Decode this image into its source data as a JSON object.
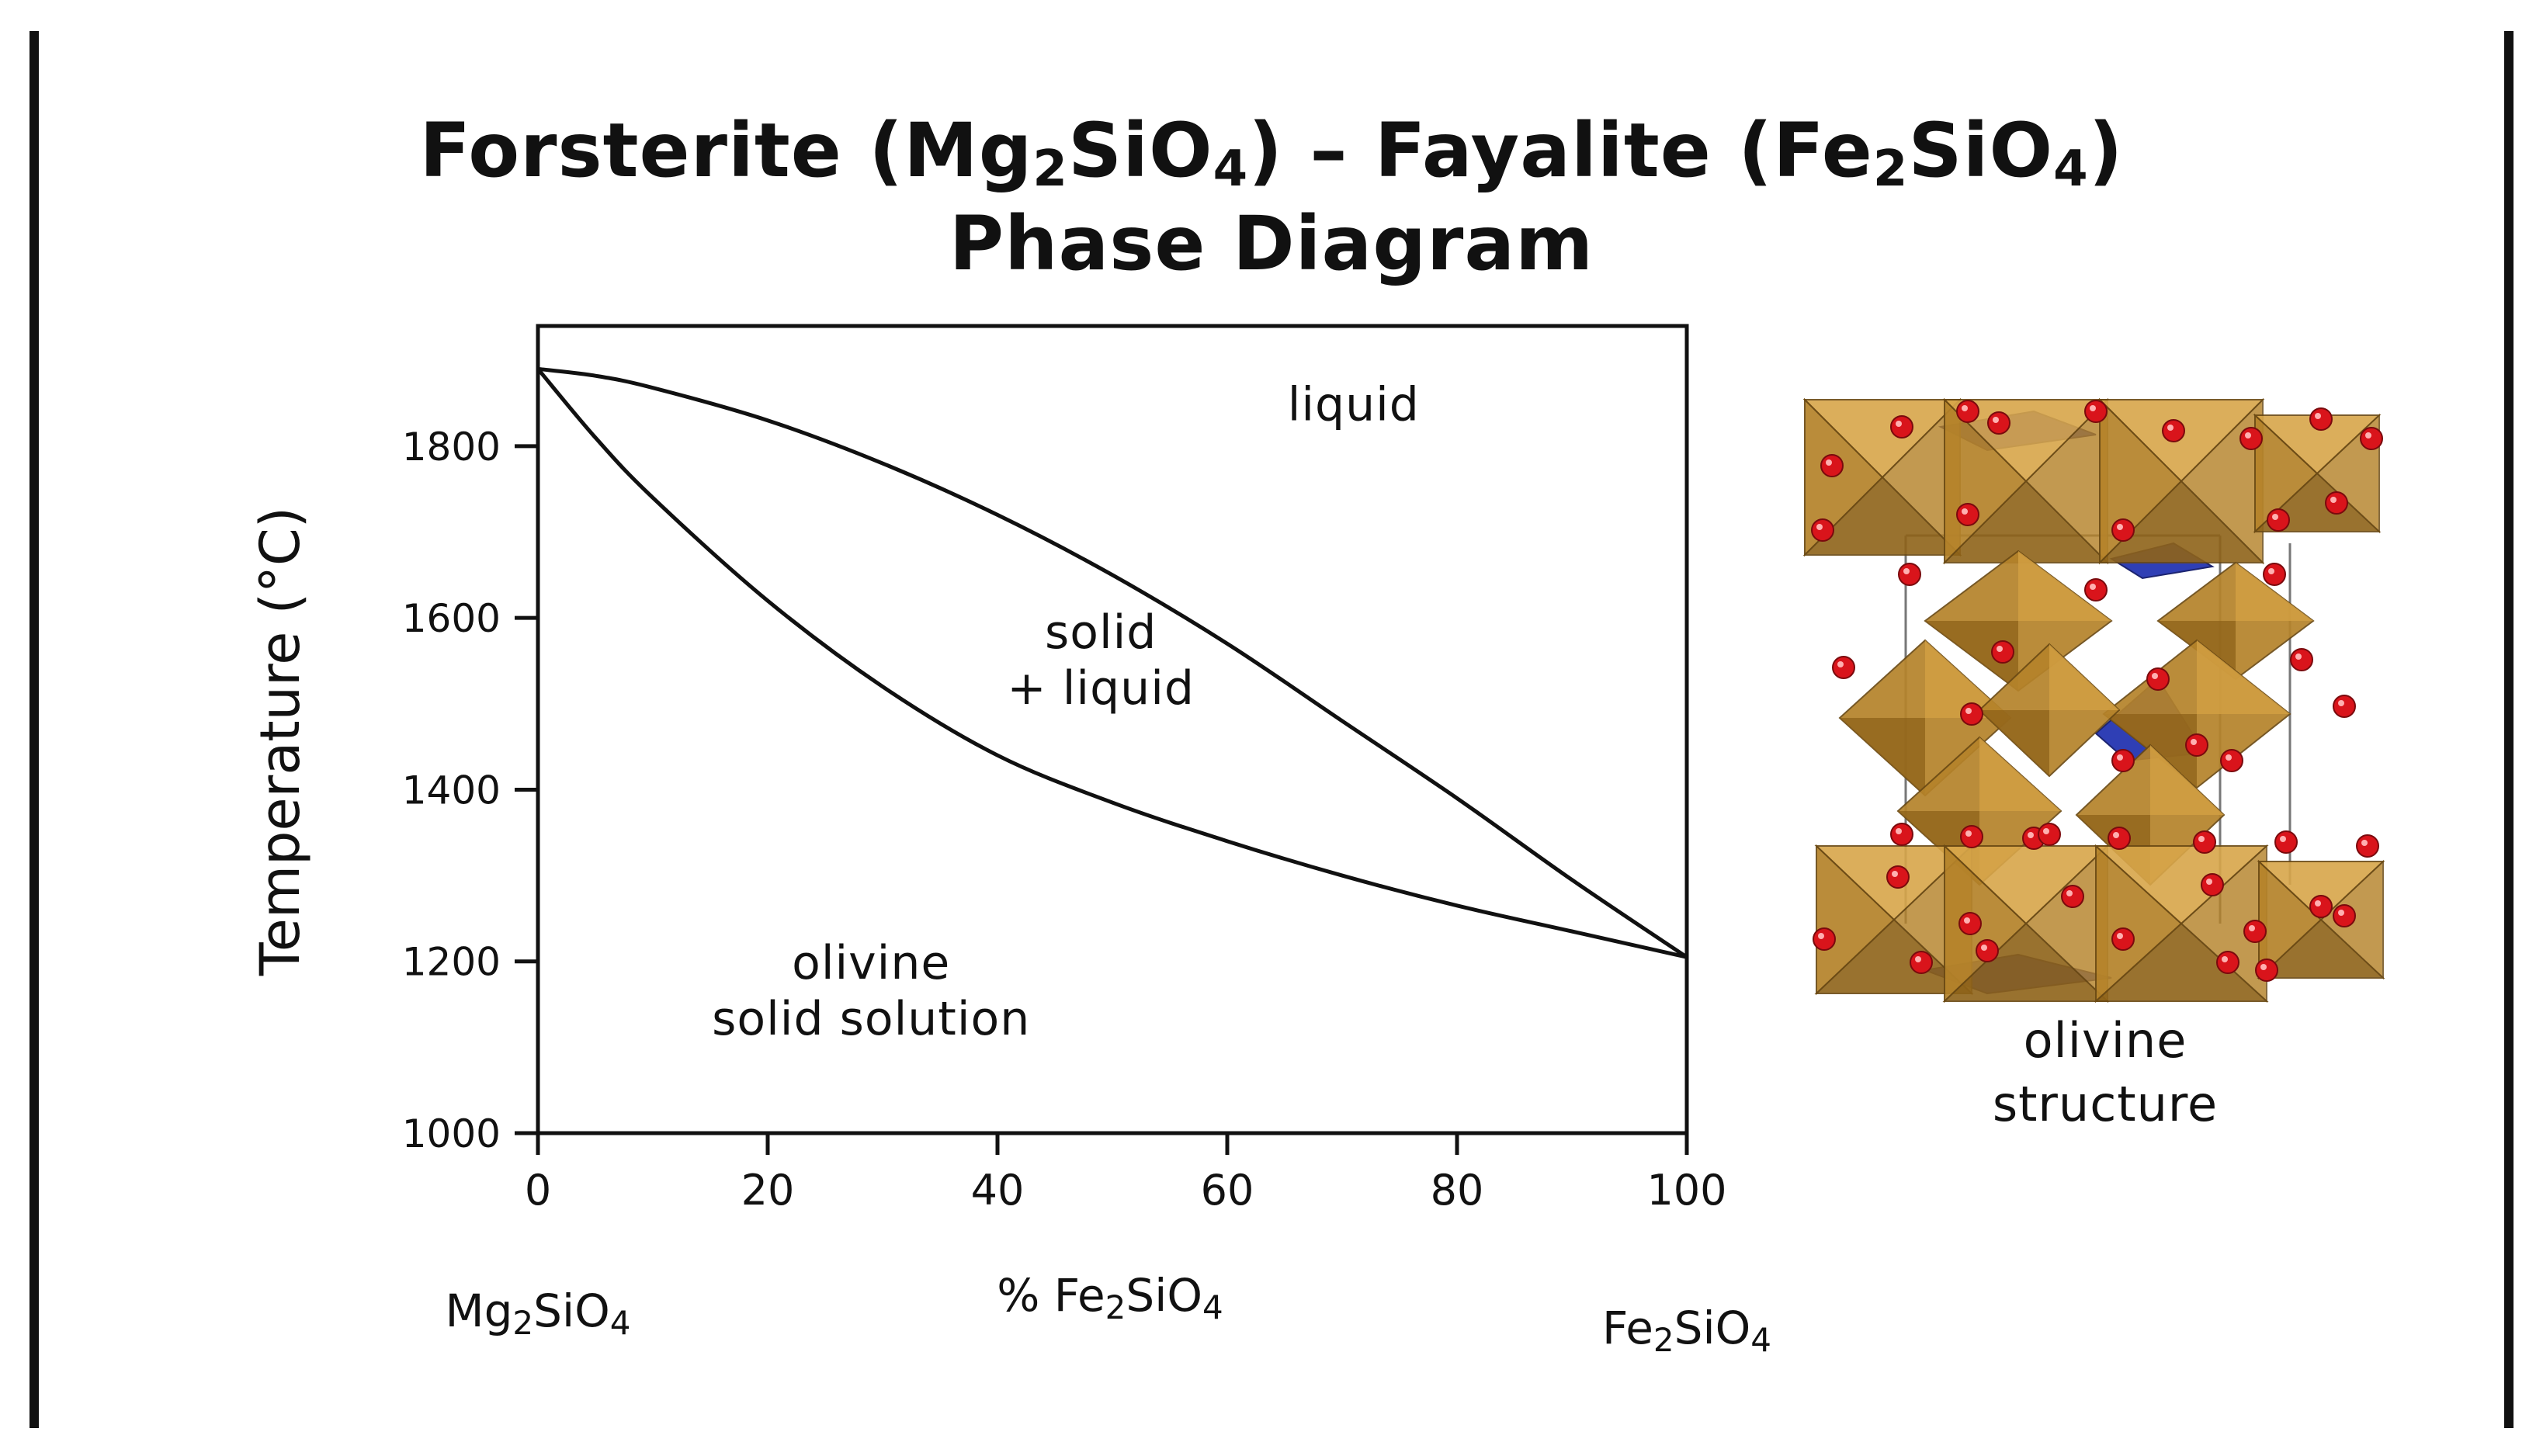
{
  "title": {
    "line1": {
      "p1": "Forsterite (Mg",
      "s1": "2",
      "p2": "SiO",
      "s2": "4",
      "p3": ") – Fayalite (Fe",
      "s3": "2",
      "p4": "SiO",
      "s4": "4",
      "p5": ")"
    },
    "line2": "Phase Diagram"
  },
  "chart_data": {
    "type": "line",
    "xlabel": "% Fe2SiO4",
    "ylabel": "Temperature (°C)",
    "xlim": [
      0,
      100
    ],
    "ylim": [
      1000,
      1940
    ],
    "x_ticks": [
      0,
      20,
      40,
      60,
      80,
      100
    ],
    "y_ticks": [
      1000,
      1200,
      1400,
      1600,
      1800
    ],
    "grid": false,
    "series": [
      {
        "role": "liquidus",
        "x": [
          0,
          5,
          10,
          20,
          30,
          40,
          50,
          60,
          70,
          80,
          90,
          100
        ],
        "y": [
          1890,
          1882,
          1868,
          1830,
          1780,
          1720,
          1650,
          1570,
          1480,
          1390,
          1295,
          1205
        ]
      },
      {
        "role": "solidus",
        "x": [
          0,
          5,
          10,
          20,
          30,
          40,
          50,
          60,
          70,
          80,
          90,
          100
        ],
        "y": [
          1890,
          1810,
          1740,
          1620,
          1520,
          1440,
          1385,
          1340,
          1300,
          1265,
          1235,
          1205
        ]
      }
    ],
    "regions": [
      {
        "name": "liquid",
        "lines": [
          "liquid"
        ],
        "x": 71,
        "y": 1830
      },
      {
        "name": "solid_liquid",
        "lines": [
          "solid",
          "+ liquid"
        ],
        "x": 49,
        "y": 1565
      },
      {
        "name": "olivine",
        "lines": [
          "olivine",
          "solid solution"
        ],
        "x": 29,
        "y": 1180
      }
    ]
  },
  "end_labels": {
    "left": {
      "p1": "Mg",
      "s1": "2",
      "p2": "SiO",
      "s2": "4"
    },
    "axis": {
      "p1": "% Fe",
      "s1": "2",
      "p2": "SiO",
      "s2": "4"
    },
    "right": {
      "p1": "Fe",
      "s1": "2",
      "p2": "SiO",
      "s2": "4"
    }
  },
  "structure": {
    "caption_line1": "olivine",
    "caption_line2": "structure",
    "colors": {
      "octahedra": "#b5832a",
      "tetrahedra": "#2f3fb5",
      "oxygen": "#d9141b"
    }
  }
}
